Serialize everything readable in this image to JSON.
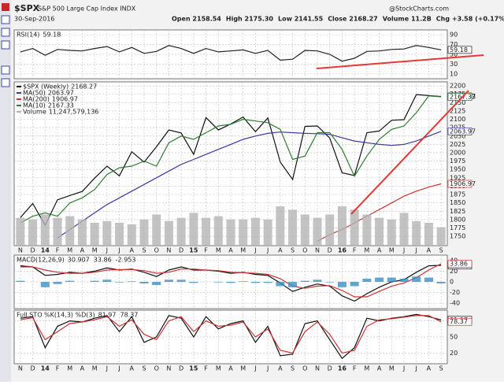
{
  "header": {
    "symbol": "$SPX",
    "name": "S&P 500 Large Cap Index INDX",
    "date": "30-Sep-2016",
    "quote": [
      "Open 2158.54",
      "High 2175.30",
      "Low 2141.55",
      "Close 2168.27",
      "Volume 11.2B",
      "Chg +3.58 (+0.17%)"
    ],
    "brand": "@StockCharts.com"
  },
  "chart_data": [
    {
      "type": "line",
      "title": "RSI(14)",
      "ylim": [
        0,
        100
      ],
      "yticks": [
        10,
        30,
        50,
        70,
        90
      ],
      "grid": true,
      "series": [
        {
          "color": "#222222",
          "values": [
            55,
            62,
            48,
            60,
            58,
            57,
            62,
            66,
            55,
            64,
            52,
            56,
            68,
            62,
            52,
            62,
            55,
            57,
            59,
            52,
            58,
            38,
            40,
            58,
            57,
            50,
            36,
            42,
            56,
            57,
            60,
            61,
            68,
            64,
            59.18
          ]
        }
      ]
    },
    {
      "type": "line",
      "ylim": [
        1722,
        2212
      ],
      "yticks": [
        1750,
        1775,
        1800,
        1825,
        1850,
        1875,
        1900,
        1925,
        1950,
        1975,
        2000,
        2025,
        2050,
        2075,
        2100,
        2125,
        2150,
        2175,
        2200
      ],
      "grid": true,
      "y2lim": [
        0,
        100000000000
      ],
      "categories": [
        "N",
        "D",
        "14",
        "F",
        "M",
        "A",
        "M",
        "J",
        "J",
        "A",
        "S",
        "O",
        "N",
        "D",
        "15",
        "F",
        "M",
        "A",
        "M",
        "J",
        "J",
        "A",
        "S",
        "O",
        "N",
        "D",
        "16",
        "F",
        "M",
        "A",
        "M",
        "J",
        "J",
        "A",
        "S"
      ],
      "series": [
        {
          "name": "$SPX (Weekly)",
          "color": "#111111",
          "values": [
            1806,
            1848,
            1783,
            1859,
            1872,
            1884,
            1924,
            1960,
            1931,
            2003,
            1972,
            2018,
            2068,
            2059,
            1995,
            2105,
            2068,
            2086,
            2107,
            2063,
            2104,
            1972,
            1920,
            2079,
            2080,
            2044,
            1940,
            1932,
            2060,
            2065,
            2097,
            2099,
            2174,
            2171,
            2168.27
          ]
        },
        {
          "name": "MA(50)",
          "color": "#3a3aa0",
          "values": [
            null,
            null,
            null,
            1745,
            1770,
            1795,
            1820,
            1845,
            1865,
            1885,
            1905,
            1925,
            1945,
            1965,
            1980,
            1995,
            2010,
            2025,
            2040,
            2050,
            2058,
            2062,
            2060,
            2058,
            2057,
            2055,
            2045,
            2035,
            2030,
            2025,
            2022,
            2025,
            2035,
            2050,
            2063.97
          ]
        },
        {
          "name": "MA(200)",
          "color": "#cc3333",
          "values": [
            null,
            null,
            null,
            null,
            null,
            null,
            null,
            null,
            null,
            null,
            null,
            null,
            null,
            null,
            null,
            null,
            null,
            null,
            null,
            null,
            null,
            null,
            null,
            null,
            1735,
            1755,
            1770,
            1790,
            1810,
            1830,
            1850,
            1870,
            1885,
            1897,
            1906.97
          ]
        },
        {
          "name": "MA(10)",
          "color": "#2e7d32",
          "values": [
            1790,
            1810,
            1820,
            1810,
            1850,
            1865,
            1890,
            1935,
            1955,
            1960,
            1975,
            1960,
            2030,
            2050,
            2040,
            2060,
            2080,
            2085,
            2100,
            2095,
            2090,
            2070,
            1980,
            1990,
            2060,
            2060,
            2010,
            1930,
            1990,
            2040,
            2070,
            2080,
            2120,
            2170,
            2167.33
          ]
        },
        {
          "name": "Volume",
          "type": "bar",
          "axis": "y2",
          "color": "#b4b4b4",
          "last_label": "11,247,579,136",
          "values": [
            17000000000,
            16000000000,
            19000000000,
            17000000000,
            18000000000,
            16000000000,
            14000000000,
            15000000000,
            14000000000,
            13000000000,
            16000000000,
            19000000000,
            15000000000,
            17000000000,
            20000000000,
            17000000000,
            18000000000,
            16000000000,
            16000000000,
            17000000000,
            16000000000,
            24000000000,
            22000000000,
            19000000000,
            17000000000,
            19000000000,
            24000000000,
            22000000000,
            19000000000,
            17000000000,
            16000000000,
            20000000000,
            15000000000,
            14000000000,
            11247579136
          ]
        }
      ]
    },
    {
      "type": "line",
      "title": "MACD(12,26,9)",
      "ylim": [
        -50,
        50
      ],
      "yticks": [
        -40,
        -20,
        0,
        20,
        40
      ],
      "grid": true,
      "series": [
        {
          "color": "#111111",
          "values": [
            30,
            28,
            12,
            14,
            18,
            16,
            20,
            26,
            22,
            24,
            18,
            10,
            22,
            28,
            22,
            22,
            20,
            16,
            18,
            14,
            12,
            -2,
            -18,
            -10,
            -4,
            -8,
            -26,
            -36,
            -22,
            -10,
            0,
            4,
            18,
            30,
            30.907
          ]
        },
        {
          "color": "#cc3333",
          "values": [
            28,
            28,
            22,
            18,
            16,
            16,
            18,
            22,
            23,
            23,
            21,
            16,
            18,
            24,
            24,
            22,
            21,
            18,
            17,
            16,
            14,
            6,
            -8,
            -12,
            -8,
            -7,
            -16,
            -28,
            -28,
            -18,
            -8,
            -2,
            8,
            22,
            33.86
          ]
        },
        {
          "type": "bar",
          "color": "#3b8fc4",
          "values": [
            2,
            0,
            -10,
            -4,
            2,
            0,
            2,
            4,
            -1,
            1,
            -3,
            -6,
            4,
            4,
            -2,
            0,
            -1,
            -2,
            1,
            -2,
            -2,
            -8,
            -10,
            2,
            4,
            -1,
            -10,
            -8,
            6,
            8,
            8,
            6,
            10,
            8,
            -2.953
          ]
        }
      ]
    },
    {
      "type": "line",
      "title": "Full STO %K(14,3) %D(3)",
      "ylim": [
        0,
        100
      ],
      "yticks": [
        20,
        50,
        80
      ],
      "grid": true,
      "series": [
        {
          "color": "#111111",
          "values": [
            85,
            88,
            30,
            70,
            80,
            78,
            85,
            90,
            60,
            88,
            40,
            50,
            90,
            85,
            50,
            88,
            65,
            75,
            80,
            40,
            70,
            15,
            18,
            75,
            80,
            45,
            10,
            30,
            85,
            80,
            85,
            88,
            92,
            88,
            81.97
          ]
        },
        {
          "color": "#cc3333",
          "values": [
            82,
            86,
            45,
            60,
            75,
            78,
            82,
            88,
            70,
            82,
            55,
            45,
            80,
            88,
            60,
            80,
            70,
            72,
            78,
            50,
            65,
            25,
            20,
            60,
            78,
            55,
            20,
            25,
            70,
            82,
            84,
            87,
            90,
            90,
            78.37
          ]
        }
      ]
    }
  ]
}
